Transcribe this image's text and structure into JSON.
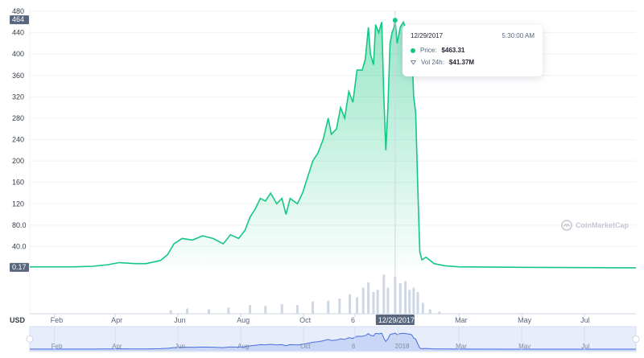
{
  "chart_data": {
    "type": "area",
    "currency_label": "USD",
    "watermark": "CoinMarketCap",
    "colors": {
      "line": "#16c784",
      "fill": "#16c784",
      "volume": "#cfd6e4",
      "badge": "#58667e",
      "navigator": "#4a6ee0"
    },
    "price_axis": {
      "ticks": [
        "40.0",
        "80.0",
        "120",
        "160",
        "200",
        "240",
        "280",
        "320",
        "360",
        "400",
        "440",
        "480"
      ],
      "ylim": [
        0,
        480
      ]
    },
    "current_value_label": "0.17",
    "hover_value_label": "464",
    "x_axis": {
      "range": [
        "2017-01-08",
        "2018-08-20"
      ],
      "ticks": [
        {
          "date": "2017-02-01",
          "label": "Feb"
        },
        {
          "date": "2017-04-01",
          "label": "Apr"
        },
        {
          "date": "2017-06-01",
          "label": "Jun"
        },
        {
          "date": "2017-08-01",
          "label": "Aug"
        },
        {
          "date": "2017-10-01",
          "label": "Oct"
        },
        {
          "date": "2017-11-20",
          "label": "6"
        },
        {
          "date": "2018-03-01",
          "label": "Mar"
        },
        {
          "date": "2018-05-01",
          "label": "May"
        },
        {
          "date": "2018-07-01",
          "label": "Jul"
        }
      ]
    },
    "navigator_ticks": [
      {
        "date": "2017-02-01",
        "label": "Feb"
      },
      {
        "date": "2017-04-01",
        "label": "Apr"
      },
      {
        "date": "2017-06-01",
        "label": "Jun"
      },
      {
        "date": "2017-08-01",
        "label": "Aug"
      },
      {
        "date": "2017-10-01",
        "label": "Oct"
      },
      {
        "date": "2017-11-20",
        "label": "6"
      },
      {
        "date": "2018-01-01",
        "label": "2018"
      },
      {
        "date": "2018-03-01",
        "label": "Mar"
      },
      {
        "date": "2018-05-01",
        "label": "May"
      },
      {
        "date": "2018-07-01",
        "label": "Jul"
      }
    ],
    "hover_date_label": "12/29/2017",
    "series": [
      {
        "type": "area",
        "points": [
          [
            "2017-01-08",
            2
          ],
          [
            "2017-02-01",
            2
          ],
          [
            "2017-02-20",
            2
          ],
          [
            "2017-03-10",
            3
          ],
          [
            "2017-03-25",
            6
          ],
          [
            "2017-04-05",
            10
          ],
          [
            "2017-04-20",
            8
          ],
          [
            "2017-05-01",
            8
          ],
          [
            "2017-05-15",
            14
          ],
          [
            "2017-05-22",
            25
          ],
          [
            "2017-05-28",
            45
          ],
          [
            "2017-06-05",
            55
          ],
          [
            "2017-06-15",
            52
          ],
          [
            "2017-06-25",
            60
          ],
          [
            "2017-07-05",
            55
          ],
          [
            "2017-07-15",
            45
          ],
          [
            "2017-07-22",
            62
          ],
          [
            "2017-07-30",
            55
          ],
          [
            "2017-08-05",
            70
          ],
          [
            "2017-08-10",
            95
          ],
          [
            "2017-08-15",
            110
          ],
          [
            "2017-08-20",
            130
          ],
          [
            "2017-08-25",
            125
          ],
          [
            "2017-08-30",
            140
          ],
          [
            "2017-09-05",
            120
          ],
          [
            "2017-09-10",
            130
          ],
          [
            "2017-09-14",
            100
          ],
          [
            "2017-09-18",
            130
          ],
          [
            "2017-09-25",
            120
          ],
          [
            "2017-09-30",
            140
          ],
          [
            "2017-10-05",
            170
          ],
          [
            "2017-10-10",
            200
          ],
          [
            "2017-10-15",
            215
          ],
          [
            "2017-10-20",
            240
          ],
          [
            "2017-10-25",
            280
          ],
          [
            "2017-10-28",
            250
          ],
          [
            "2017-11-02",
            260
          ],
          [
            "2017-11-06",
            300
          ],
          [
            "2017-11-10",
            280
          ],
          [
            "2017-11-14",
            330
          ],
          [
            "2017-11-18",
            310
          ],
          [
            "2017-11-22",
            370
          ],
          [
            "2017-11-27",
            370
          ],
          [
            "2017-11-30",
            390
          ],
          [
            "2017-12-03",
            450
          ],
          [
            "2017-12-05",
            400
          ],
          [
            "2017-12-08",
            380
          ],
          [
            "2017-12-10",
            455
          ],
          [
            "2017-12-13",
            440
          ],
          [
            "2017-12-16",
            460
          ],
          [
            "2017-12-18",
            320
          ],
          [
            "2017-12-20",
            220
          ],
          [
            "2017-12-22",
            300
          ],
          [
            "2017-12-24",
            420
          ],
          [
            "2017-12-26",
            440
          ],
          [
            "2017-12-28",
            450
          ],
          [
            "2017-12-29",
            463.31
          ],
          [
            "2017-12-31",
            420
          ],
          [
            "2018-01-03",
            450
          ],
          [
            "2018-01-06",
            460
          ],
          [
            "2018-01-10",
            440
          ],
          [
            "2018-01-14",
            420
          ],
          [
            "2018-01-16",
            320
          ],
          [
            "2018-01-18",
            290
          ],
          [
            "2018-01-20",
            150
          ],
          [
            "2018-01-22",
            30
          ],
          [
            "2018-01-24",
            15
          ],
          [
            "2018-01-28",
            20
          ],
          [
            "2018-02-05",
            8
          ],
          [
            "2018-02-15",
            4
          ],
          [
            "2018-03-01",
            2
          ],
          [
            "2018-05-01",
            1
          ],
          [
            "2018-08-20",
            0.17
          ]
        ]
      },
      {
        "name": "Vol 24h",
        "type": "volume",
        "points": [
          [
            "2017-05-25",
            0.08
          ],
          [
            "2017-06-10",
            0.12
          ],
          [
            "2017-07-01",
            0.1
          ],
          [
            "2017-07-20",
            0.14
          ],
          [
            "2017-08-10",
            0.2
          ],
          [
            "2017-08-25",
            0.18
          ],
          [
            "2017-09-10",
            0.22
          ],
          [
            "2017-09-25",
            0.2
          ],
          [
            "2017-10-10",
            0.28
          ],
          [
            "2017-10-25",
            0.3
          ],
          [
            "2017-11-05",
            0.35
          ],
          [
            "2017-11-15",
            0.45
          ],
          [
            "2017-11-22",
            0.38
          ],
          [
            "2017-11-28",
            0.6
          ],
          [
            "2017-12-03",
            0.72
          ],
          [
            "2017-12-08",
            0.5
          ],
          [
            "2017-12-12",
            0.55
          ],
          [
            "2017-12-18",
            0.9
          ],
          [
            "2017-12-22",
            0.6
          ],
          [
            "2017-12-29",
            0.85
          ],
          [
            "2018-01-03",
            0.7
          ],
          [
            "2018-01-08",
            0.75
          ],
          [
            "2018-01-12",
            0.55
          ],
          [
            "2018-01-16",
            0.6
          ],
          [
            "2018-01-20",
            0.5
          ],
          [
            "2018-01-25",
            0.25
          ],
          [
            "2018-02-01",
            0.1
          ],
          [
            "2018-02-10",
            0.05
          ]
        ]
      }
    ]
  },
  "tooltip": {
    "date": "12/29/2017",
    "time": "5:30:00 AM",
    "price_label": "Price:",
    "price_value": "$463.31",
    "volume_label": "Vol 24h:",
    "volume_value": "$41.37M"
  }
}
